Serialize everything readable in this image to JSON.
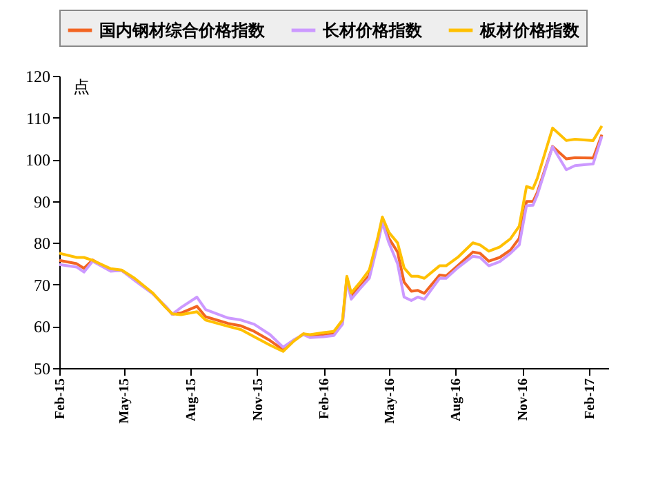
{
  "chart_data": {
    "type": "line",
    "ylabel": "点",
    "x": [
      "2015-02-01",
      "2015-02-25",
      "2015-03-07",
      "2015-03-19",
      "2015-04-13",
      "2015-04-28",
      "2015-05-16",
      "2015-06-10",
      "2015-06-28",
      "2015-07-07",
      "2015-07-19",
      "2015-08-10",
      "2015-08-22",
      "2015-09-22",
      "2015-10-10",
      "2015-10-28",
      "2015-11-19",
      "2015-12-07",
      "2015-12-22",
      "2016-01-04",
      "2016-01-13",
      "2016-02-01",
      "2016-02-15",
      "2016-02-27",
      "2016-03-04",
      "2016-03-10",
      "2016-03-22",
      "2016-04-04",
      "2016-04-16",
      "2016-04-22",
      "2016-05-01",
      "2016-05-13",
      "2016-05-22",
      "2016-06-01",
      "2016-06-10",
      "2016-06-19",
      "2016-07-10",
      "2016-07-19",
      "2016-08-04",
      "2016-08-25",
      "2016-09-04",
      "2016-09-16",
      "2016-10-01",
      "2016-10-16",
      "2016-10-28",
      "2016-11-07",
      "2016-11-16",
      "2016-11-22",
      "2016-12-13",
      "2017-01-01",
      "2017-01-13",
      "2017-02-07",
      "2017-02-19"
    ],
    "series": [
      {
        "name": "国内钢材综合价格指数",
        "color": "#f26522",
        "values": [
          75.8,
          75.0,
          73.9,
          75.9,
          73.4,
          73.4,
          71.2,
          67.9,
          64.6,
          62.9,
          63.2,
          64.8,
          62.3,
          60.7,
          60.1,
          58.8,
          56.6,
          54.4,
          56.6,
          58.2,
          57.7,
          57.9,
          58.2,
          61.0,
          71.7,
          67.3,
          69.5,
          72.3,
          80.5,
          85.3,
          81.1,
          77.8,
          70.6,
          68.4,
          68.6,
          67.9,
          72.3,
          72.1,
          74.5,
          77.8,
          77.5,
          75.6,
          76.5,
          78.3,
          81.1,
          89.9,
          89.9,
          92.1,
          103.1,
          100.1,
          100.4,
          100.3,
          105.9
        ]
      },
      {
        "name": "长材价格指数",
        "color": "#cc99ff",
        "values": [
          74.8,
          74.2,
          73.0,
          75.6,
          73.2,
          73.4,
          71.0,
          67.8,
          64.8,
          62.9,
          64.5,
          67.0,
          64.0,
          62.0,
          61.5,
          60.5,
          58.0,
          55.0,
          56.8,
          58.0,
          57.3,
          57.5,
          57.8,
          60.5,
          71.0,
          66.5,
          69.0,
          71.5,
          80.0,
          84.8,
          80.0,
          75.0,
          67.0,
          66.2,
          67.0,
          66.5,
          71.5,
          71.5,
          74.0,
          76.8,
          76.5,
          74.5,
          75.5,
          77.5,
          79.5,
          88.9,
          89.0,
          91.5,
          103.0,
          97.5,
          98.5,
          98.9,
          105.5
        ]
      },
      {
        "name": "板材价格指数",
        "color": "#ffc000",
        "values": [
          77.5,
          76.5,
          76.5,
          75.8,
          73.8,
          73.5,
          71.5,
          68.0,
          64.5,
          63.0,
          62.8,
          63.5,
          61.5,
          60.0,
          59.2,
          57.5,
          55.5,
          54.0,
          56.5,
          58.2,
          58.0,
          58.5,
          58.8,
          61.5,
          72.0,
          68.0,
          70.5,
          73.5,
          81.5,
          86.2,
          82.5,
          80.0,
          74.0,
          72.0,
          72.0,
          71.5,
          74.5,
          74.5,
          76.5,
          80.0,
          79.5,
          78.0,
          79.0,
          81.0,
          84.0,
          93.5,
          93.0,
          95.5,
          107.5,
          104.5,
          104.8,
          104.5,
          108.0
        ]
      }
    ],
    "xlim": [
      "2015-02-01",
      "2017-02-28"
    ],
    "xticks": [
      {
        "value": "2015-02",
        "label": "Feb-15"
      },
      {
        "value": "2015-05",
        "label": "May-15"
      },
      {
        "value": "2015-08",
        "label": "Aug-15"
      },
      {
        "value": "2015-11",
        "label": "Nov-15"
      },
      {
        "value": "2016-02",
        "label": "Feb-16"
      },
      {
        "value": "2016-05",
        "label": "May-16"
      },
      {
        "value": "2016-08",
        "label": "Aug-16"
      },
      {
        "value": "2016-11",
        "label": "Nov-16"
      },
      {
        "value": "2017-02",
        "label": "Feb-17"
      }
    ],
    "ylim": [
      50,
      120
    ],
    "yticks": [
      50,
      60,
      70,
      80,
      90,
      100,
      110,
      120
    ],
    "grid": false,
    "legend": "top",
    "marker": "none",
    "line_style": "solid"
  }
}
